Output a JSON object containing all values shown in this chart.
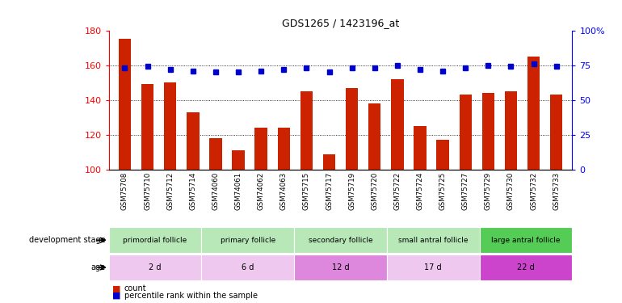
{
  "title": "GDS1265 / 1423196_at",
  "samples": [
    "GSM75708",
    "GSM75710",
    "GSM75712",
    "GSM75714",
    "GSM74060",
    "GSM74061",
    "GSM74062",
    "GSM74063",
    "GSM75715",
    "GSM75717",
    "GSM75719",
    "GSM75720",
    "GSM75722",
    "GSM75724",
    "GSM75725",
    "GSM75727",
    "GSM75729",
    "GSM75730",
    "GSM75732",
    "GSM75733"
  ],
  "bar_values": [
    175,
    149,
    150,
    133,
    118,
    111,
    124,
    124,
    145,
    109,
    147,
    138,
    152,
    125,
    117,
    143,
    144,
    145,
    165,
    143
  ],
  "dot_values_pct": [
    73,
    74,
    72,
    71,
    70,
    70,
    71,
    72,
    73,
    70,
    73,
    73,
    75,
    72,
    71,
    73,
    75,
    74,
    76,
    74
  ],
  "bar_color": "#cc2200",
  "dot_color": "#0000cc",
  "ylim_left": [
    100,
    180
  ],
  "ylim_right": [
    0,
    100
  ],
  "yticks_left": [
    100,
    120,
    140,
    160,
    180
  ],
  "yticks_right": [
    0,
    25,
    50,
    75,
    100
  ],
  "yticklabels_right": [
    "0",
    "25",
    "50",
    "75",
    "100%"
  ],
  "grid_values": [
    120,
    140,
    160
  ],
  "stages": [
    {
      "label": "primordial follicle",
      "start": 0,
      "end": 4,
      "color": "#b8e8b8"
    },
    {
      "label": "primary follicle",
      "start": 4,
      "end": 8,
      "color": "#b8e8b8"
    },
    {
      "label": "secondary follicle",
      "start": 8,
      "end": 12,
      "color": "#b8e8b8"
    },
    {
      "label": "small antral follicle",
      "start": 12,
      "end": 16,
      "color": "#b8e8b8"
    },
    {
      "label": "large antral follicle",
      "start": 16,
      "end": 20,
      "color": "#55cc55"
    }
  ],
  "ages": [
    {
      "label": "2 d",
      "start": 0,
      "end": 4,
      "color": "#eec8ee"
    },
    {
      "label": "6 d",
      "start": 4,
      "end": 8,
      "color": "#eec8ee"
    },
    {
      "label": "12 d",
      "start": 8,
      "end": 12,
      "color": "#dd88dd"
    },
    {
      "label": "17 d",
      "start": 12,
      "end": 16,
      "color": "#eec8ee"
    },
    {
      "label": "22 d",
      "start": 16,
      "end": 20,
      "color": "#cc44cc"
    }
  ],
  "legend_items": [
    {
      "label": "count",
      "color": "#cc2200",
      "marker": "s"
    },
    {
      "label": "percentile rank within the sample",
      "color": "#0000cc",
      "marker": "s"
    }
  ]
}
